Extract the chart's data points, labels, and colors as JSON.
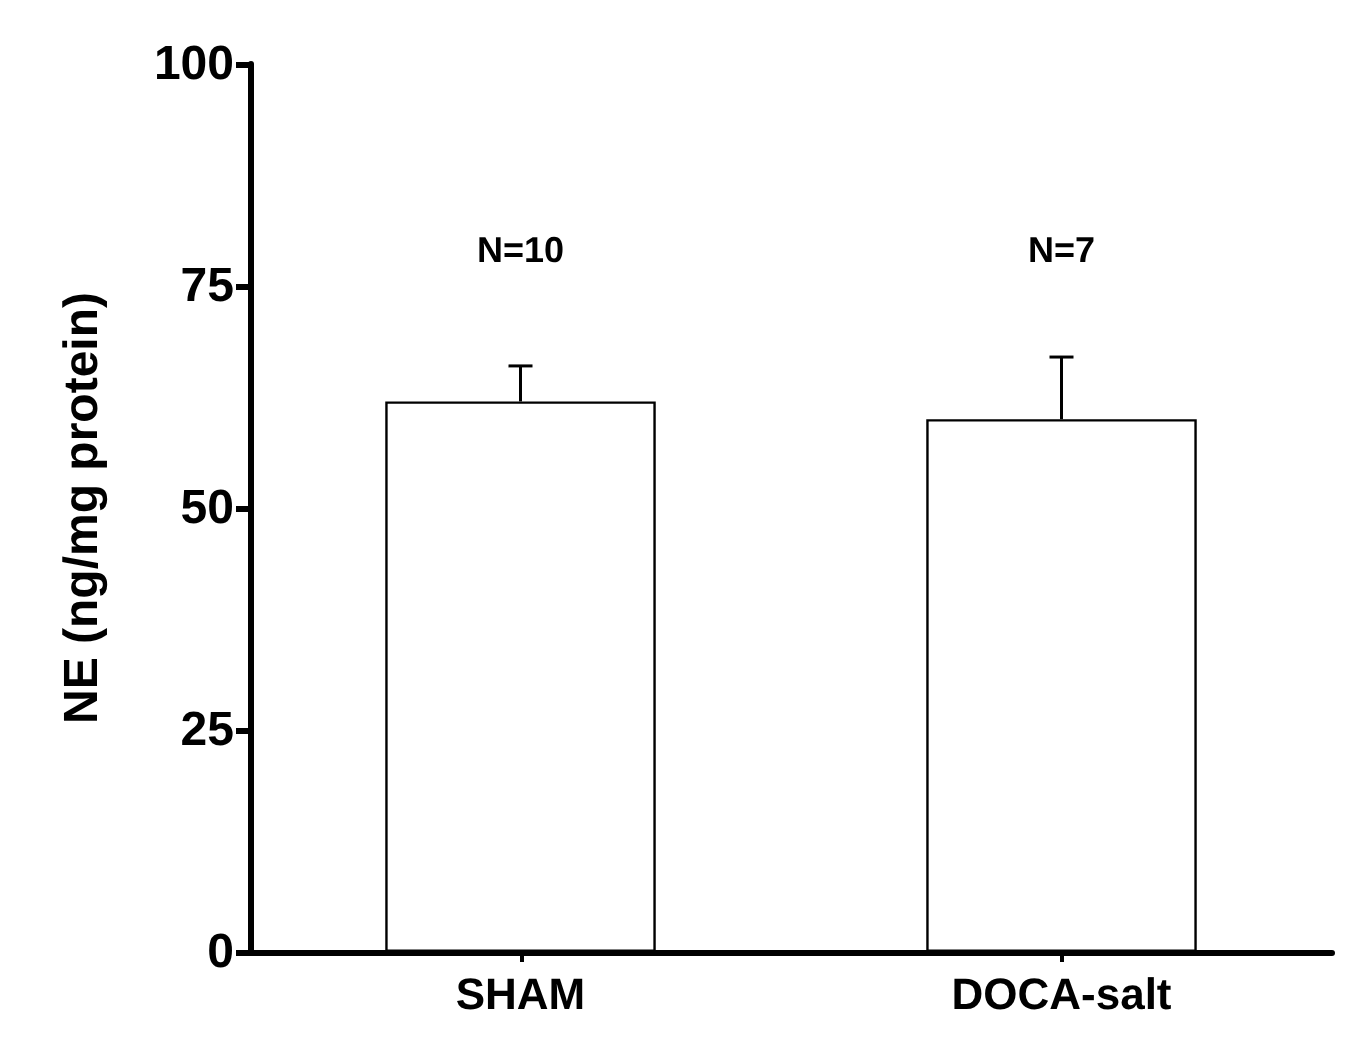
{
  "chart_data": {
    "type": "bar",
    "ylabel": "NE (ng/mg protein)",
    "categories": [
      "SHAM",
      "DOCA-salt"
    ],
    "values": [
      62,
      60
    ],
    "errors": [
      4,
      7
    ],
    "color": "#ffffff",
    "ylim": [
      0,
      100
    ],
    "yticks": [
      0,
      25,
      50,
      75,
      100
    ],
    "grid": false,
    "annotations": [
      "N=10",
      "N=7"
    ]
  }
}
